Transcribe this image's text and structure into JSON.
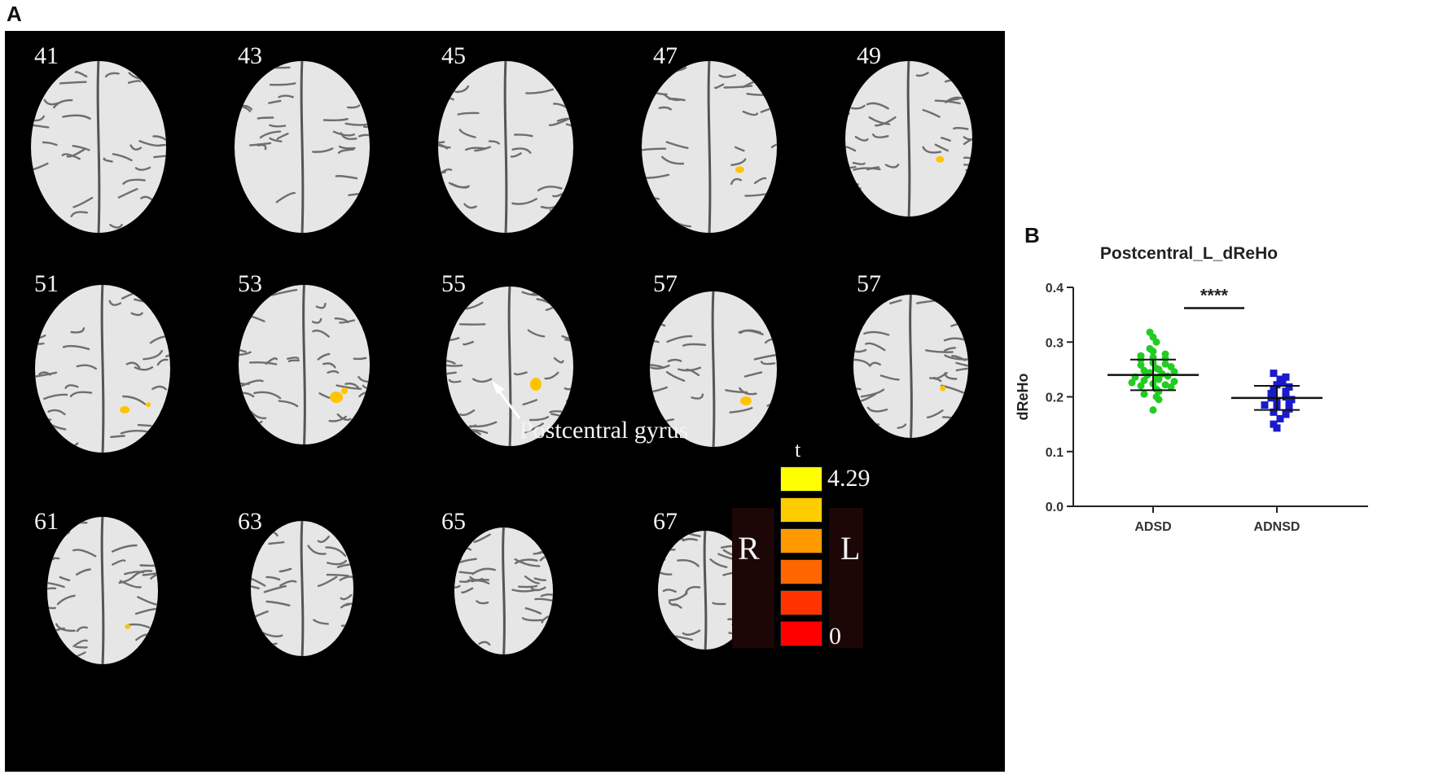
{
  "panel_a": {
    "label": "A",
    "slices": [
      "41",
      "43",
      "45",
      "47",
      "49",
      "51",
      "53",
      "55",
      "57",
      "57",
      "61",
      "63",
      "65",
      "67"
    ],
    "annotation": "Postcentral gyrus",
    "side_left": "R",
    "side_right": "L",
    "colorbar": {
      "title": "t",
      "max_label": "4.29",
      "min_label": "0",
      "colors": [
        "#ffff00",
        "#ffcc00",
        "#ff9900",
        "#ff6600",
        "#ff3300",
        "#ff0000"
      ]
    }
  },
  "panel_b": {
    "label": "B"
  },
  "chart_data": {
    "type": "scatter",
    "title": "Postcentral_L_dReHo",
    "xlabel": "",
    "ylabel": "dReHo",
    "categories": [
      "ADSD",
      "ADNSD"
    ],
    "ylim": [
      0.0,
      0.4
    ],
    "yticks": [
      "0.0",
      "0.1",
      "0.2",
      "0.3",
      "0.4"
    ],
    "significance": "****",
    "series": [
      {
        "category": "ADSD",
        "color": "#22cc22",
        "marker": "circle",
        "mean": 0.24,
        "sd": 0.028,
        "values": [
          0.318,
          0.309,
          0.3,
          0.288,
          0.283,
          0.278,
          0.275,
          0.272,
          0.27,
          0.268,
          0.262,
          0.26,
          0.258,
          0.255,
          0.252,
          0.25,
          0.248,
          0.246,
          0.244,
          0.242,
          0.24,
          0.238,
          0.236,
          0.234,
          0.232,
          0.23,
          0.228,
          0.226,
          0.224,
          0.222,
          0.22,
          0.218,
          0.214,
          0.21,
          0.205,
          0.2,
          0.195,
          0.176
        ]
      },
      {
        "category": "ADNSD",
        "color": "#1a1acc",
        "marker": "square",
        "mean": 0.198,
        "sd": 0.022,
        "values": [
          0.243,
          0.236,
          0.232,
          0.228,
          0.222,
          0.218,
          0.214,
          0.21,
          0.206,
          0.203,
          0.2,
          0.198,
          0.195,
          0.192,
          0.188,
          0.185,
          0.182,
          0.178,
          0.172,
          0.168,
          0.16,
          0.15,
          0.143
        ]
      }
    ]
  }
}
